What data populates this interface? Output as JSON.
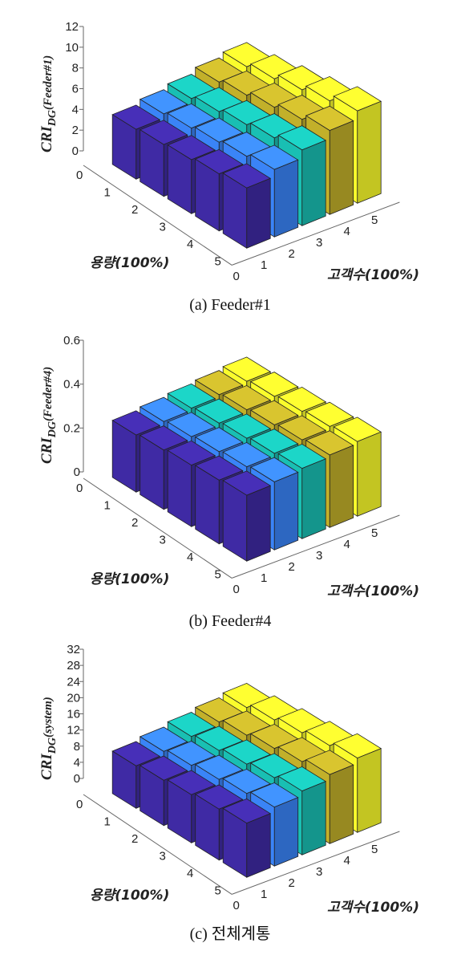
{
  "chart_data": [
    {
      "type": "bar3d",
      "caption": "(a)  Feeder#1",
      "ylabel_main": "CRI",
      "ylabel_sub": "DG",
      "ylabel_paren": "(Feeder#1)",
      "xlabel": "용량(100%)",
      "zlabel": "고객수(100%)",
      "capacity_ticks": [
        "0",
        "1",
        "2",
        "3",
        "4",
        "5"
      ],
      "customer_ticks": [
        "0",
        "1",
        "2",
        "3",
        "4",
        "5"
      ],
      "z_ticks": [
        "0",
        "2",
        "4",
        "6",
        "8",
        "10",
        "12"
      ],
      "zlim": [
        0,
        12
      ],
      "colors": [
        "#3f2aa4",
        "#3a84f7",
        "#19bfb3",
        "#c2b02a",
        "#fafc2c"
      ],
      "values_note": "rows = 용량 1..5, columns = 고객수 1..5",
      "values": [
        [
          4.8,
          5.2,
          5.6,
          6.1,
          6.5
        ],
        [
          5.0,
          5.5,
          6.0,
          6.5,
          7.0
        ],
        [
          5.2,
          5.8,
          6.4,
          7.0,
          7.6
        ],
        [
          5.5,
          6.1,
          6.8,
          7.5,
          8.2
        ],
        [
          5.8,
          6.5,
          7.3,
          8.1,
          8.9
        ]
      ]
    },
    {
      "type": "bar3d",
      "caption": "(b)  Feeder#4",
      "ylabel_main": "CRI",
      "ylabel_sub": "DG",
      "ylabel_paren": "(Feeder#4)",
      "xlabel": "용량(100%)",
      "zlabel": "고객수(100%)",
      "capacity_ticks": [
        "0",
        "1",
        "2",
        "3",
        "4",
        "5"
      ],
      "customer_ticks": [
        "0",
        "1",
        "2",
        "3",
        "4",
        "5"
      ],
      "z_ticks": [
        "0",
        "0.2",
        "0.4",
        "0.6"
      ],
      "zlim": [
        0,
        0.6
      ],
      "colors": [
        "#3f2aa4",
        "#3a84f7",
        "#19bfb3",
        "#c2b02a",
        "#fafc2c"
      ],
      "values_note": "rows = 용량 1..5, columns = 고객수 1..5",
      "values": [
        [
          0.26,
          0.27,
          0.28,
          0.29,
          0.3
        ],
        [
          0.27,
          0.28,
          0.29,
          0.3,
          0.31
        ],
        [
          0.28,
          0.29,
          0.3,
          0.31,
          0.32
        ],
        [
          0.29,
          0.3,
          0.31,
          0.32,
          0.33
        ],
        [
          0.3,
          0.31,
          0.32,
          0.33,
          0.34
        ]
      ]
    },
    {
      "type": "bar3d",
      "caption": "(c)  전체계통",
      "ylabel_main": "CRI",
      "ylabel_sub": "DG",
      "ylabel_paren": "(system)",
      "xlabel": "용량(100%)",
      "zlabel": "고객수(100%)",
      "capacity_ticks": [
        "0",
        "1",
        "2",
        "3",
        "4",
        "5"
      ],
      "customer_ticks": [
        "0",
        "1",
        "2",
        "3",
        "4",
        "5"
      ],
      "z_ticks": [
        "0",
        "4",
        "8",
        "12",
        "16",
        "20",
        "24",
        "28",
        "32"
      ],
      "zlim": [
        0,
        32
      ],
      "colors": [
        "#3f2aa4",
        "#3a84f7",
        "#19bfb3",
        "#c2b02a",
        "#fafc2c"
      ],
      "values_note": "rows = 용량 1..5, columns = 고객수 1..5",
      "values": [
        [
          10.5,
          11.3,
          12.2,
          13.0,
          13.8
        ],
        [
          11.2,
          12.1,
          13.0,
          14.0,
          15.0
        ],
        [
          11.9,
          12.9,
          13.9,
          15.0,
          16.1
        ],
        [
          12.6,
          13.7,
          14.8,
          16.0,
          17.2
        ],
        [
          13.4,
          14.6,
          15.8,
          17.1,
          18.4
        ]
      ]
    }
  ]
}
